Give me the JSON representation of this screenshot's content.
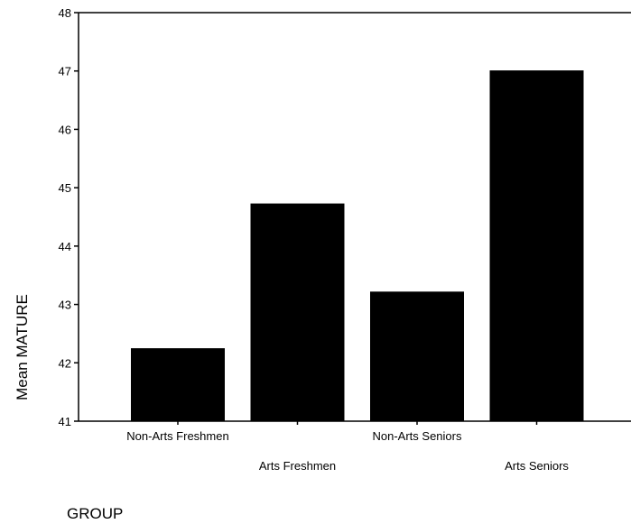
{
  "chart_data": {
    "type": "bar",
    "categories": [
      "Non-Arts Freshmen",
      "Arts Freshmen",
      "Non-Arts Seniors",
      "Arts Seniors"
    ],
    "values": [
      42.25,
      44.73,
      43.22,
      47.01
    ],
    "ylabel": "Mean MATURE",
    "xlabel": "GROUP",
    "ylim": [
      41,
      48
    ],
    "yticks": [
      41,
      42,
      43,
      44,
      45,
      46,
      47,
      48
    ],
    "bar_color": "#000000",
    "grid": false
  }
}
